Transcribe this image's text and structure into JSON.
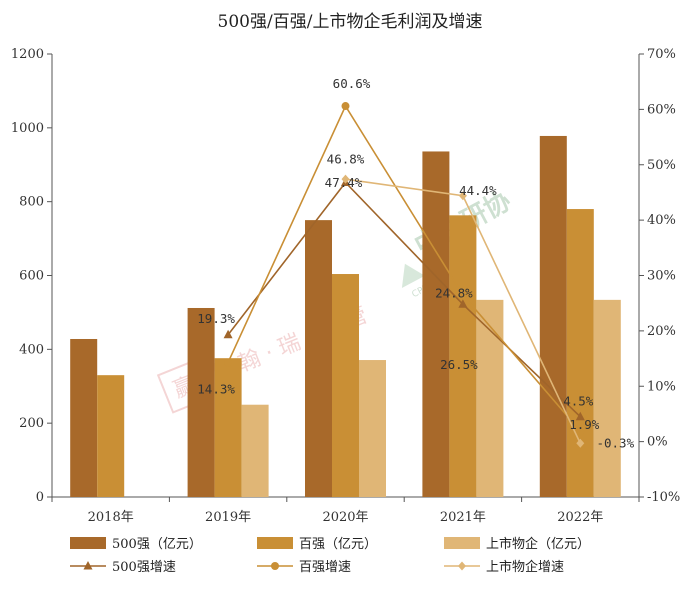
{
  "chart_data": {
    "type": "bar",
    "title": "500强/百强/上市物企毛利润及增速",
    "categories": [
      "2018年",
      "2019年",
      "2020年",
      "2021年",
      "2022年"
    ],
    "xlabel": "",
    "ylabel": "",
    "ylim": [
      0,
      1200
    ],
    "yticks": [
      "0",
      "200",
      "400",
      "600",
      "800",
      "1000",
      "1200"
    ],
    "y2lim": [
      -10,
      70
    ],
    "y2ticks": [
      "-10%",
      "0%",
      "10%",
      "20%",
      "30%",
      "40%",
      "50%",
      "60%",
      "70%"
    ],
    "grid": false,
    "legend_position": "bottom",
    "bar_series": [
      {
        "name": "500强（亿元）",
        "color": "#a8692a",
        "values": [
          428,
          512,
          750,
          936,
          978
        ]
      },
      {
        "name": "百强（亿元）",
        "color": "#c98f35",
        "values": [
          330,
          376,
          604,
          763,
          780
        ]
      },
      {
        "name": "上市物企（亿元）",
        "color": "#e0b676",
        "values": [
          null,
          250,
          371,
          534,
          534
        ]
      }
    ],
    "line_series": [
      {
        "name": "500强增速",
        "color": "#a0652a",
        "marker": "triangle",
        "values": [
          null,
          19.3,
          46.8,
          24.8,
          4.5
        ],
        "labels": [
          null,
          "19.3%",
          "46.8%",
          "24.8%",
          "4.5%"
        ]
      },
      {
        "name": "百强增速",
        "color": "#c98f35",
        "marker": "circle",
        "values": [
          null,
          14.3,
          60.6,
          26.5,
          1.9
        ],
        "labels": [
          null,
          "14.3%",
          "60.6%",
          "26.5%",
          "1.9%"
        ]
      },
      {
        "name": "上市物企增速",
        "color": "#e0b676",
        "marker": "diamond",
        "values": [
          null,
          null,
          47.4,
          44.4,
          -0.3
        ],
        "labels": [
          null,
          null,
          "47.4%",
          "44.4%",
          "-0.3%"
        ]
      }
    ]
  },
  "watermarks": {
    "left_seal": "赢",
    "left_text": "亿 翰 · 瑞 · 物 管",
    "right_text": "中物研协",
    "right_sub": "CPMRI"
  }
}
